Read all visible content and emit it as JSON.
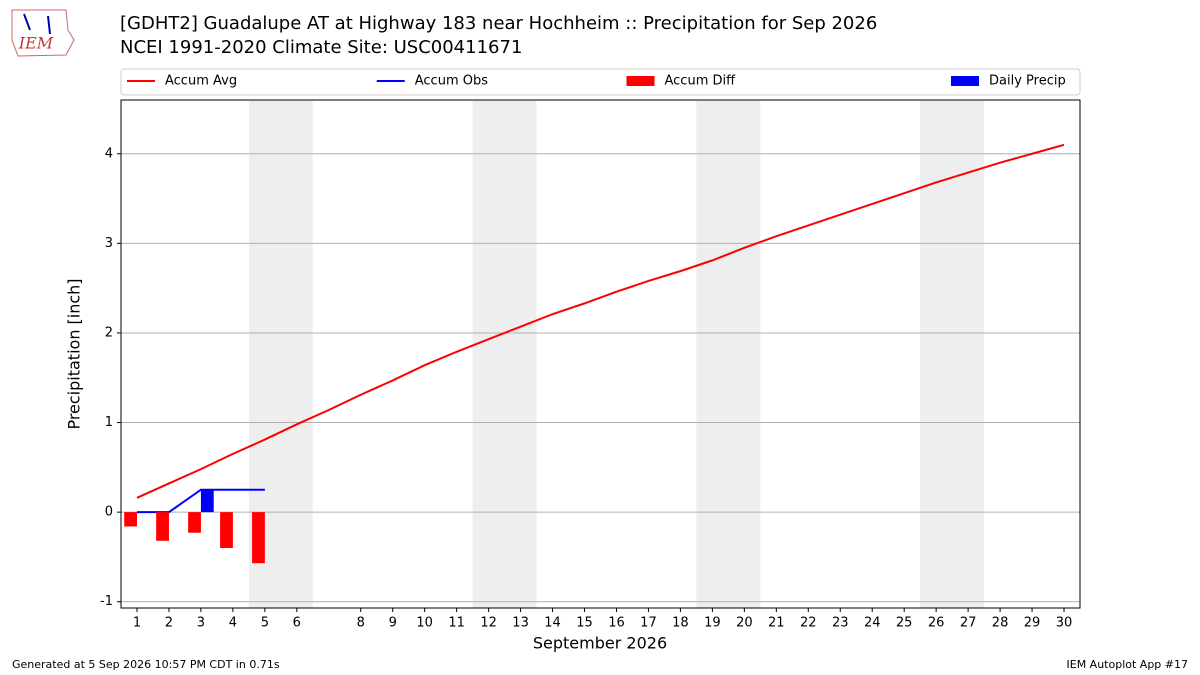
{
  "chart_data": {
    "type": "line",
    "title": "[GDHT2] Guadalupe  AT at Highway 183 near Hochheim :: Precipitation for Sep 2026",
    "subtitle": "NCEI 1991-2020 Climate Site: USC00411671",
    "x_label": "September 2026",
    "y_label": "Precipitation [inch]",
    "footer_left": "Generated at 5 Sep 2026 10:57 PM CDT in 0.71s",
    "footer_right": "IEM Autoplot App #17",
    "logo_text": "IEM",
    "x": [
      1,
      2,
      3,
      4,
      5,
      6,
      7,
      8,
      9,
      10,
      11,
      12,
      13,
      14,
      15,
      16,
      17,
      18,
      19,
      20,
      21,
      22,
      23,
      24,
      25,
      26,
      27,
      28,
      29,
      30
    ],
    "xlim": [
      0.5,
      30.5
    ],
    "xticks": [
      1,
      2,
      3,
      4,
      5,
      6,
      8,
      9,
      10,
      11,
      12,
      13,
      14,
      15,
      16,
      17,
      18,
      19,
      20,
      21,
      22,
      23,
      24,
      25,
      26,
      27,
      28,
      29,
      30
    ],
    "ylim": [
      -1.07,
      4.6
    ],
    "yticks": [
      -1,
      0,
      1,
      2,
      3,
      4
    ],
    "grid": true,
    "legend": "top",
    "weekend_shading": [
      [
        4.5,
        6.5
      ],
      [
        11.5,
        13.5
      ],
      [
        18.5,
        20.5
      ],
      [
        25.5,
        27.5
      ]
    ],
    "series": [
      {
        "name": "Accum Avg",
        "type": "line",
        "color": "#ff0000",
        "values": [
          0.16,
          0.32,
          0.48,
          0.65,
          0.81,
          0.98,
          1.14,
          1.31,
          1.47,
          1.64,
          1.79,
          1.93,
          2.07,
          2.21,
          2.33,
          2.46,
          2.58,
          2.69,
          2.81,
          2.95,
          3.08,
          3.2,
          3.32,
          3.44,
          3.56,
          3.68,
          3.79,
          3.9,
          4.0,
          4.1
        ]
      },
      {
        "name": "Accum Obs",
        "type": "line",
        "color": "#0000ff",
        "values": [
          0,
          0,
          0.25,
          0.25,
          0.25,
          null,
          null,
          null,
          null,
          null,
          null,
          null,
          null,
          null,
          null,
          null,
          null,
          null,
          null,
          null,
          null,
          null,
          null,
          null,
          null,
          null,
          null,
          null,
          null,
          null
        ]
      },
      {
        "name": "Accum Diff",
        "type": "bar",
        "color": "#ff0000",
        "values": [
          -0.16,
          -0.32,
          -0.23,
          -0.4,
          -0.57,
          null,
          null,
          null,
          null,
          null,
          null,
          null,
          null,
          null,
          null,
          null,
          null,
          null,
          null,
          null,
          null,
          null,
          null,
          null,
          null,
          null,
          null,
          null,
          null,
          null
        ]
      },
      {
        "name": "Daily Precip",
        "type": "bar",
        "color": "#0000ff",
        "values": [
          0,
          0,
          0.25,
          0,
          0,
          null,
          null,
          null,
          null,
          null,
          null,
          null,
          null,
          null,
          null,
          null,
          null,
          null,
          null,
          null,
          null,
          null,
          null,
          null,
          null,
          null,
          null,
          null,
          null,
          null
        ]
      }
    ]
  }
}
